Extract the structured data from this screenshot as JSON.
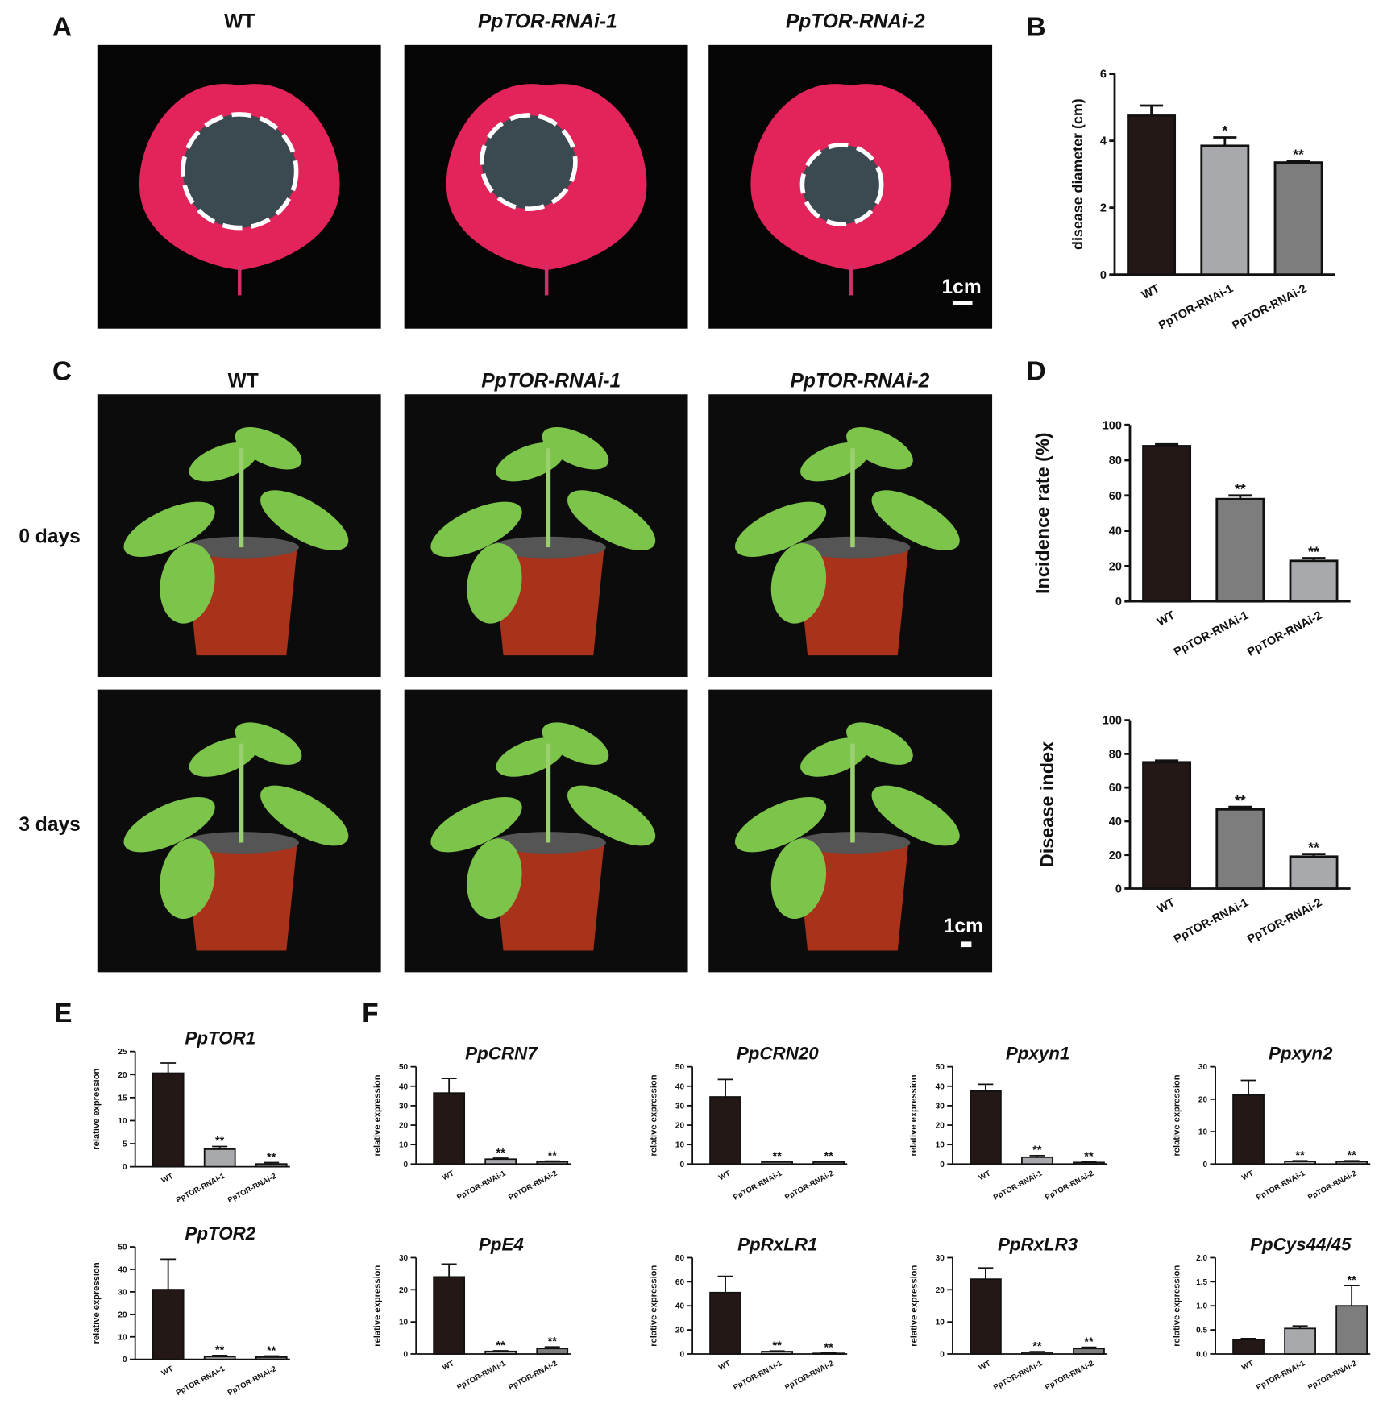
{
  "figure": {
    "panels": [
      "A",
      "B",
      "C",
      "D",
      "E",
      "F"
    ],
    "photo_columns_A": [
      "WT",
      "PpTOR-RNAi-1",
      "PpTOR-RNAi-2"
    ],
    "photo_columns_C": [
      "WT",
      "PpTOR-RNAi-1",
      "PpTOR-RNAi-2"
    ],
    "row_labels": [
      "0 days",
      "3 days"
    ],
    "scale_bars": [
      "1cm",
      "1cm"
    ]
  },
  "chart_data": [
    {
      "type": "bar",
      "ylabel": "disease diameter (cm)",
      "categories": [
        "WT",
        "PpTOR-RNAi-1",
        "PpTOR-RNAi-2"
      ],
      "values": [
        4.75,
        3.85,
        3.35
      ],
      "errors": [
        0.3,
        0.25,
        0.05
      ],
      "sig_labels": [
        null,
        "*",
        "**"
      ],
      "colors": [
        "#231815",
        "#a7a9ac",
        "#7d7d7d"
      ],
      "ylim": [
        0,
        6
      ],
      "yticks": [
        0,
        2,
        4,
        6
      ]
    },
    {
      "type": "bar",
      "ylabel": "Incidence rate (%)",
      "categories": [
        "WT",
        "PpTOR-RNAi-1",
        "PpTOR-RNAi-2"
      ],
      "values": [
        88,
        58,
        23
      ],
      "errors": [
        1,
        2,
        1.5
      ],
      "sig_labels": [
        null,
        "**",
        "**"
      ],
      "colors": [
        "#231815",
        "#7d7d7d",
        "#a7a9ac"
      ],
      "ylim": [
        0,
        100
      ],
      "yticks": [
        0,
        20,
        40,
        60,
        80,
        100
      ]
    },
    {
      "type": "bar",
      "ylabel": "Disease index",
      "categories": [
        "WT",
        "PpTOR-RNAi-1",
        "PpTOR-RNAi-2"
      ],
      "values": [
        75,
        47,
        19
      ],
      "errors": [
        1,
        1.5,
        1.5
      ],
      "sig_labels": [
        null,
        "**",
        "**"
      ],
      "colors": [
        "#231815",
        "#7d7d7d",
        "#a7a9ac"
      ],
      "ylim": [
        0,
        100
      ],
      "yticks": [
        0,
        20,
        40,
        60,
        80,
        100
      ]
    },
    {
      "type": "bar",
      "title": "PpTOR1",
      "ylabel": "relative expression",
      "categories": [
        "WT",
        "PpTOR-RNAi-1",
        "PpTOR-RNAi-2"
      ],
      "values": [
        20.3,
        3.8,
        0.6
      ],
      "errors": [
        2.2,
        0.6,
        0.3
      ],
      "sig_labels": [
        null,
        "**",
        "**"
      ],
      "colors": [
        "#231815",
        "#a7a9ac",
        "#7d7d7d"
      ],
      "ylim": [
        0,
        25
      ],
      "yticks": [
        0,
        5,
        10,
        15,
        20,
        25
      ]
    },
    {
      "type": "bar",
      "title": "PpTOR2",
      "ylabel": "relative expression",
      "categories": [
        "WT",
        "PpTOR-RNAi-1",
        "PpTOR-RNAi-2"
      ],
      "values": [
        31,
        1.2,
        1.0
      ],
      "errors": [
        13.5,
        0.5,
        0.5
      ],
      "sig_labels": [
        null,
        "**",
        "**"
      ],
      "colors": [
        "#231815",
        "#a7a9ac",
        "#7d7d7d"
      ],
      "ylim": [
        0,
        50
      ],
      "yticks": [
        0,
        10,
        20,
        30,
        40,
        50
      ]
    },
    {
      "type": "bar",
      "title": "PpCRN7",
      "ylabel": "relative expression",
      "categories": [
        "WT",
        "PpTOR-RNAi-1",
        "PpTOR-RNAi-2"
      ],
      "values": [
        36.5,
        2.5,
        1.2
      ],
      "errors": [
        7.5,
        0.5,
        0.3
      ],
      "sig_labels": [
        null,
        "**",
        "**"
      ],
      "colors": [
        "#231815",
        "#a7a9ac",
        "#7d7d7d"
      ],
      "ylim": [
        0,
        50
      ],
      "yticks": [
        0,
        10,
        20,
        30,
        40,
        50
      ]
    },
    {
      "type": "bar",
      "title": "PpCRN20",
      "ylabel": "relative expression",
      "categories": [
        "WT",
        "PpTOR-RNAi-1",
        "PpTOR-RNAi-2"
      ],
      "values": [
        34.5,
        1,
        1
      ],
      "errors": [
        9,
        0.3,
        0.3
      ],
      "sig_labels": [
        null,
        "**",
        "**"
      ],
      "colors": [
        "#231815",
        "#a7a9ac",
        "#7d7d7d"
      ],
      "ylim": [
        0,
        50
      ],
      "yticks": [
        0,
        10,
        20,
        30,
        40,
        50
      ]
    },
    {
      "type": "bar",
      "title": "Ppxyn1",
      "ylabel": "relative expression",
      "categories": [
        "WT",
        "PpTOR-RNAi-1",
        "PpTOR-RNAi-2"
      ],
      "values": [
        37.5,
        3.5,
        0.8
      ],
      "errors": [
        3.5,
        0.8,
        0.2
      ],
      "sig_labels": [
        null,
        "**",
        "**"
      ],
      "colors": [
        "#231815",
        "#a7a9ac",
        "#7d7d7d"
      ],
      "ylim": [
        0,
        50
      ],
      "yticks": [
        0,
        10,
        20,
        30,
        40,
        50
      ]
    },
    {
      "type": "bar",
      "title": "Ppxyn2",
      "ylabel": "relative expression",
      "categories": [
        "WT",
        "PpTOR-RNAi-1",
        "PpTOR-RNAi-2"
      ],
      "values": [
        21.3,
        0.8,
        0.8
      ],
      "errors": [
        4.5,
        0.2,
        0.2
      ],
      "sig_labels": [
        null,
        "**",
        "**"
      ],
      "colors": [
        "#231815",
        "#a7a9ac",
        "#7d7d7d"
      ],
      "ylim": [
        0,
        30
      ],
      "yticks": [
        0,
        10,
        20,
        30
      ]
    },
    {
      "type": "bar",
      "title": "PpE4",
      "ylabel": "relative expression",
      "categories": [
        "WT",
        "PpTOR-RNAi-1",
        "PpTOR-RNAi-2"
      ],
      "values": [
        24,
        0.8,
        1.7
      ],
      "errors": [
        4,
        0.2,
        0.5
      ],
      "sig_labels": [
        null,
        "**",
        "**"
      ],
      "colors": [
        "#231815",
        "#a7a9ac",
        "#7d7d7d"
      ],
      "ylim": [
        0,
        30
      ],
      "yticks": [
        0,
        10,
        20,
        30
      ]
    },
    {
      "type": "bar",
      "title": "PpRxLR1",
      "ylabel": "relative expression",
      "categories": [
        "WT",
        "PpTOR-RNAi-1",
        "PpTOR-RNAi-2"
      ],
      "values": [
        51,
        2,
        0.5
      ],
      "errors": [
        13.5,
        0.5,
        0.2
      ],
      "sig_labels": [
        null,
        "**",
        "**"
      ],
      "colors": [
        "#231815",
        "#a7a9ac",
        "#7d7d7d"
      ],
      "ylim": [
        0,
        80
      ],
      "yticks": [
        0,
        20,
        40,
        60,
        80
      ]
    },
    {
      "type": "bar",
      "title": "PpRxLR3",
      "ylabel": "relative expression",
      "categories": [
        "WT",
        "PpTOR-RNAi-1",
        "PpTOR-RNAi-2"
      ],
      "values": [
        23.3,
        0.5,
        1.7
      ],
      "errors": [
        3.5,
        0.2,
        0.4
      ],
      "sig_labels": [
        null,
        "**",
        "**"
      ],
      "colors": [
        "#231815",
        "#a7a9ac",
        "#7d7d7d"
      ],
      "ylim": [
        0,
        30
      ],
      "yticks": [
        0,
        10,
        20,
        30
      ]
    },
    {
      "type": "bar",
      "title": "PpCys44/45",
      "ylabel": "relative expression",
      "categories": [
        "WT",
        "PpTOR-RNAi-1",
        "PpTOR-RNAi-2"
      ],
      "values": [
        0.3,
        0.53,
        1.0
      ],
      "errors": [
        0.02,
        0.05,
        0.42
      ],
      "sig_labels": [
        null,
        null,
        "**"
      ],
      "colors": [
        "#231815",
        "#a7a9ac",
        "#7d7d7d"
      ],
      "ylim": [
        0,
        2
      ],
      "yticks": [
        {
          "value": 0,
          "label": "0.0"
        },
        0.5,
        {
          "value": 1,
          "label": "1.0"
        },
        1.5,
        {
          "value": 2,
          "label": "2.0"
        }
      ]
    }
  ]
}
